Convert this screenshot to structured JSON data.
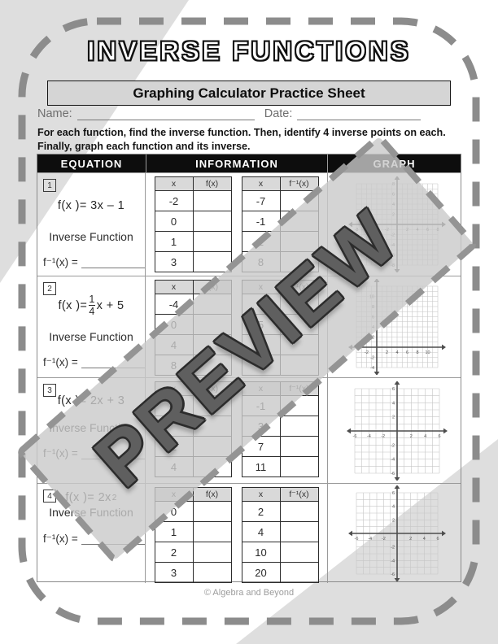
{
  "page": {
    "title": "INVERSE FUNCTIONS",
    "subtitle": "Graphing Calculator Practice Sheet",
    "name_label": "Name:",
    "date_label": "Date:",
    "instructions_line1": "For each function, find the inverse function.  Then, identify 4 inverse points on each.",
    "instructions_line2": "Finally, graph each function and its inverse.",
    "footer": "© Algebra and Beyond",
    "watermark": "PREVIEW"
  },
  "colors": {
    "header_bg": "#0d0d0d",
    "subtitle_bg": "#d5d5d5",
    "minitable_header_bg": "#d9d9d9",
    "corner_triangle": "#dedede",
    "watermark_gray": "#5f5f5f",
    "dash_border": "#8c8c8c"
  },
  "table": {
    "headers": [
      "EQUATION",
      "INFORMATION",
      "GRAPH"
    ],
    "rows": [
      {
        "num": "1",
        "equation": "f(x )= 3x – 1",
        "inverse_label": "Inverse Function",
        "finv_label": "f⁻¹(x) =",
        "t1": {
          "h1": "x",
          "h2": "f(x)",
          "x": [
            "-2",
            "0",
            "1",
            "3"
          ],
          "y": [
            "",
            "",
            "",
            ""
          ]
        },
        "t2": {
          "h1": "x",
          "h2": "f⁻¹(x)",
          "x": [
            "-7",
            "-1",
            "2",
            "8"
          ],
          "y": [
            "",
            "",
            "",
            ""
          ]
        }
      },
      {
        "num": "2",
        "equation_prefix": "f(x )=",
        "frac_num": "1",
        "frac_den": "4",
        "equation_suffix": "x + 5",
        "inverse_label": "Inverse Function",
        "finv_label": "f⁻¹(x) =",
        "t1": {
          "h1": "x",
          "h2": "f(x)",
          "x": [
            "-4",
            "0",
            "4",
            "8"
          ],
          "y": [
            "",
            "",
            "",
            ""
          ]
        },
        "t2": {
          "h1": "x",
          "h2": "f⁻¹(x)",
          "x": [
            "4",
            "5",
            "",
            ""
          ],
          "y": [
            "",
            "",
            "",
            ""
          ]
        }
      },
      {
        "num": "3",
        "equation": "f(x )= 2x + 3",
        "inverse_label": "Inverse Function",
        "finv_label": "f⁻¹(x) =",
        "t1": {
          "h1": "x",
          "h2": "f(x)",
          "x": [
            "-2",
            "",
            "2",
            "4"
          ],
          "y": [
            "",
            "",
            "",
            ""
          ]
        },
        "t2": {
          "h1": "x",
          "h2": "f⁻¹(x)",
          "x": [
            "-1",
            "3",
            "7",
            "11"
          ],
          "y": [
            "",
            "",
            "",
            ""
          ]
        }
      },
      {
        "num": "4",
        "equation_prefix": "f(x )= 2x",
        "equation_sup": "2",
        "inverse_label": "Inverse Function",
        "finv_label": "f⁻¹(x) =",
        "t1": {
          "h1": "x",
          "h2": "f(x)",
          "x": [
            "0",
            "1",
            "2",
            "3"
          ],
          "y": [
            "",
            "",
            "",
            ""
          ]
        },
        "t2": {
          "h1": "x",
          "h2": "f⁻¹(x)",
          "x": [
            "2",
            "4",
            "10",
            "20"
          ],
          "y": [
            "",
            "",
            "",
            ""
          ]
        }
      }
    ]
  },
  "chart_data": [
    {
      "type": "coordinate-grid",
      "row": 1,
      "xlim": [
        -8,
        8
      ],
      "ylim": [
        -8,
        8
      ],
      "grid_step": 1,
      "xticks": [
        -8,
        -6,
        -4,
        -2,
        2,
        4,
        6,
        8
      ],
      "yticks": [
        -8,
        -6,
        -4,
        -2,
        2,
        4,
        6,
        8
      ],
      "series": "none - blank practice grid"
    },
    {
      "type": "coordinate-grid",
      "row": 2,
      "xlim": [
        -4,
        12
      ],
      "ylim": [
        -4,
        12
      ],
      "grid_step": 1,
      "xticks": [
        -2,
        2,
        4,
        6,
        8,
        10
      ],
      "yticks": [
        -4,
        -2,
        2,
        4,
        6,
        8,
        10
      ],
      "series": "none - blank practice grid"
    },
    {
      "type": "coordinate-grid",
      "row": 3,
      "xlim": [
        -6,
        6
      ],
      "ylim": [
        -6,
        6
      ],
      "grid_step": 1,
      "xticks": [
        -6,
        -4,
        -2,
        2,
        4,
        6
      ],
      "yticks": [
        -6,
        -4,
        -2,
        2,
        4,
        6
      ],
      "series": "none - blank practice grid"
    },
    {
      "type": "coordinate-grid",
      "row": 4,
      "xlim": [
        -6,
        6
      ],
      "ylim": [
        -6,
        6
      ],
      "grid_step": 1,
      "xticks": [
        -6,
        -4,
        -2,
        2,
        4,
        6
      ],
      "yticks": [
        -6,
        -4,
        -2,
        2,
        4,
        6
      ],
      "series": "none - blank practice grid"
    }
  ]
}
